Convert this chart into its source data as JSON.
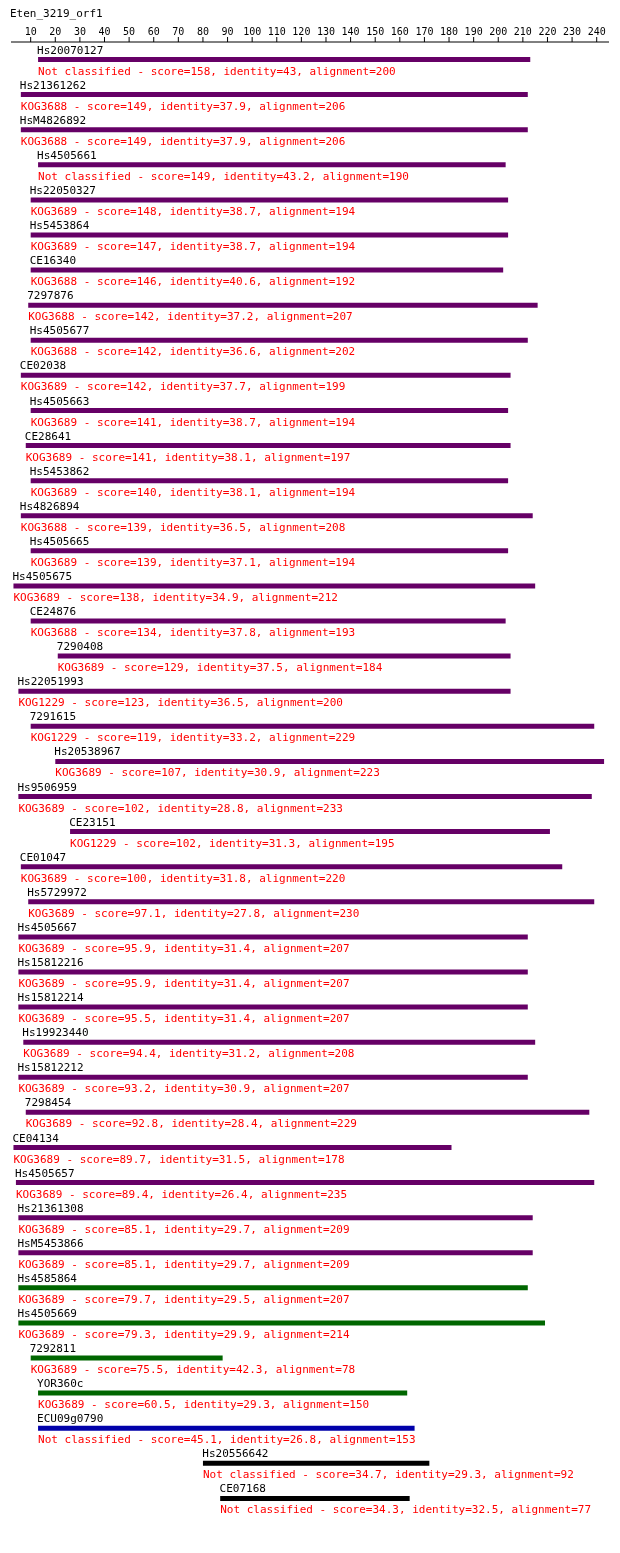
{
  "chart_data": {
    "type": "bar",
    "orientation": "horizontal",
    "title": "Eten_3219_orf1",
    "categories": [
      "Hs20070127",
      "Hs21361262",
      "HsM4826892",
      "Hs4505661",
      "Hs22050327",
      "Hs5453864",
      "CE16340",
      "7297876",
      "Hs4505677",
      "CE02038",
      "Hs4505663",
      "CE28641",
      "Hs5453862",
      "Hs4826894",
      "Hs4505665",
      "Hs4505675",
      "CE24876",
      "7290408",
      "Hs22051993",
      "7291615",
      "Hs20538967",
      "Hs9506959",
      "CE23151",
      "CE01047",
      "Hs5729972",
      "Hs4505667",
      "Hs15812216",
      "Hs15812214",
      "Hs19923440",
      "Hs15812212",
      "7298454",
      "CE04134",
      "Hs4505657",
      "Hs21361308",
      "HsM5453866",
      "Hs4585864",
      "Hs4505669",
      "7292811",
      "YOR360c",
      "ECU09g0790",
      "Hs20556642",
      "CE07168"
    ],
    "base": [
      13,
      6,
      6,
      13,
      10,
      10,
      10,
      9,
      10,
      6,
      10,
      8,
      10,
      6,
      10,
      3,
      10,
      21,
      5,
      10,
      20,
      5,
      26,
      6,
      9,
      5,
      5,
      5,
      7,
      5,
      8,
      3,
      4,
      5,
      5,
      5,
      5,
      10,
      13,
      13,
      80,
      87
    ],
    "values": [
      200,
      206,
      206,
      190,
      194,
      194,
      192,
      207,
      202,
      199,
      194,
      197,
      194,
      208,
      194,
      212,
      193,
      184,
      200,
      229,
      223,
      233,
      195,
      220,
      230,
      207,
      207,
      207,
      208,
      207,
      229,
      178,
      235,
      209,
      209,
      207,
      214,
      78,
      150,
      153,
      92,
      77
    ],
    "colors": [
      "#660066",
      "#660066",
      "#660066",
      "#660066",
      "#660066",
      "#660066",
      "#660066",
      "#660066",
      "#660066",
      "#660066",
      "#660066",
      "#660066",
      "#660066",
      "#660066",
      "#660066",
      "#660066",
      "#660066",
      "#660066",
      "#660066",
      "#660066",
      "#660066",
      "#660066",
      "#660066",
      "#660066",
      "#660066",
      "#660066",
      "#660066",
      "#660066",
      "#660066",
      "#660066",
      "#660066",
      "#660066",
      "#660066",
      "#660066",
      "#660066",
      "#006600",
      "#006600",
      "#006600",
      "#006600",
      "#0000aa",
      "#000000",
      "#000000"
    ],
    "xlim": [
      2,
      245
    ],
    "xticks": [
      10,
      20,
      30,
      40,
      50,
      60,
      70,
      80,
      90,
      100,
      110,
      120,
      130,
      140,
      150,
      160,
      170,
      180,
      190,
      200,
      210,
      220,
      230,
      240
    ],
    "grid": false,
    "legend": false,
    "annotations": [
      {
        "text": "Not classified - score=158, identity=43, alignment=200",
        "x": 13,
        "y": "Hs20070127"
      },
      {
        "text": "KOG3688 - score=149, identity=37.9, alignment=206",
        "x": 6,
        "y": "Hs21361262"
      },
      {
        "text": "KOG3688 - score=149, identity=37.9, alignment=206",
        "x": 6,
        "y": "HsM4826892"
      },
      {
        "text": "Not classified - score=149, identity=43.2, alignment=190",
        "x": 13,
        "y": "Hs4505661"
      },
      {
        "text": "KOG3689 - score=148, identity=38.7, alignment=194",
        "x": 10,
        "y": "Hs22050327"
      },
      {
        "text": "KOG3689 - score=147, identity=38.7, alignment=194",
        "x": 10,
        "y": "Hs5453864"
      },
      {
        "text": "KOG3688 - score=146, identity=40.6, alignment=192",
        "x": 10,
        "y": "CE16340"
      },
      {
        "text": "KOG3688 - score=142, identity=37.2, alignment=207",
        "x": 9,
        "y": "7297876"
      },
      {
        "text": "KOG3688 - score=142, identity=36.6, alignment=202",
        "x": 10,
        "y": "Hs4505677"
      },
      {
        "text": "KOG3689 - score=142, identity=37.7, alignment=199",
        "x": 6,
        "y": "CE02038"
      },
      {
        "text": "KOG3689 - score=141, identity=38.7, alignment=194",
        "x": 10,
        "y": "Hs4505663"
      },
      {
        "text": "KOG3689 - score=141, identity=38.1, alignment=197",
        "x": 8,
        "y": "CE28641"
      },
      {
        "text": "KOG3689 - score=140, identity=38.1, alignment=194",
        "x": 10,
        "y": "Hs5453862"
      },
      {
        "text": "KOG3688 - score=139, identity=36.5, alignment=208",
        "x": 6,
        "y": "Hs4826894"
      },
      {
        "text": "KOG3689 - score=139, identity=37.1, alignment=194",
        "x": 10,
        "y": "Hs4505665"
      },
      {
        "text": "KOG3689 - score=138, identity=34.9, alignment=212",
        "x": 3,
        "y": "Hs4505675"
      },
      {
        "text": "KOG3688 - score=134, identity=37.8, alignment=193",
        "x": 10,
        "y": "CE24876"
      },
      {
        "text": "KOG3689 - score=129, identity=37.5, alignment=184",
        "x": 21,
        "y": "7290408"
      },
      {
        "text": "KOG1229 - score=123, identity=36.5, alignment=200",
        "x": 5,
        "y": "Hs22051993"
      },
      {
        "text": "KOG1229 - score=119, identity=33.2, alignment=229",
        "x": 10,
        "y": "7291615"
      },
      {
        "text": "KOG3689 - score=107, identity=30.9, alignment=223",
        "x": 20,
        "y": "Hs20538967"
      },
      {
        "text": "KOG3689 - score=102, identity=28.8, alignment=233",
        "x": 5,
        "y": "Hs9506959"
      },
      {
        "text": "KOG1229 - score=102, identity=31.3, alignment=195",
        "x": 26,
        "y": "CE23151"
      },
      {
        "text": "KOG3689 - score=100, identity=31.8, alignment=220",
        "x": 6,
        "y": "CE01047"
      },
      {
        "text": "KOG3689 - score=97.1, identity=27.8, alignment=230",
        "x": 9,
        "y": "Hs5729972"
      },
      {
        "text": "KOG3689 - score=95.9, identity=31.4, alignment=207",
        "x": 5,
        "y": "Hs4505667"
      },
      {
        "text": "KOG3689 - score=95.9, identity=31.4, alignment=207",
        "x": 5,
        "y": "Hs15812216"
      },
      {
        "text": "KOG3689 - score=95.5, identity=31.4, alignment=207",
        "x": 5,
        "y": "Hs15812214"
      },
      {
        "text": "KOG3689 - score=94.4, identity=31.2, alignment=208",
        "x": 7,
        "y": "Hs19923440"
      },
      {
        "text": "KOG3689 - score=93.2, identity=30.9, alignment=207",
        "x": 5,
        "y": "Hs15812212"
      },
      {
        "text": "KOG3689 - score=92.8, identity=28.4, alignment=229",
        "x": 8,
        "y": "7298454"
      },
      {
        "text": "KOG3689 - score=89.7, identity=31.5, alignment=178",
        "x": 3,
        "y": "CE04134"
      },
      {
        "text": "KOG3689 - score=89.4, identity=26.4, alignment=235",
        "x": 4,
        "y": "Hs4505657"
      },
      {
        "text": "KOG3689 - score=85.1, identity=29.7, alignment=209",
        "x": 5,
        "y": "Hs21361308"
      },
      {
        "text": "KOG3689 - score=85.1, identity=29.7, alignment=209",
        "x": 5,
        "y": "HsM5453866"
      },
      {
        "text": "KOG3689 - score=79.7, identity=29.5, alignment=207",
        "x": 5,
        "y": "Hs4585864"
      },
      {
        "text": "KOG3689 - score=79.3, identity=29.9, alignment=214",
        "x": 5,
        "y": "Hs4505669"
      },
      {
        "text": "KOG3689 - score=75.5, identity=42.3, alignment=78",
        "x": 10,
        "y": "7292811"
      },
      {
        "text": "KOG3689 - score=60.5, identity=29.3, alignment=150",
        "x": 13,
        "y": "YOR360c"
      },
      {
        "text": "Not classified - score=45.1, identity=26.8, alignment=153",
        "x": 13,
        "y": "ECU09g0790"
      },
      {
        "text": "Not classified - score=34.7, identity=29.3, alignment=92",
        "x": 80,
        "y": "Hs20556642"
      },
      {
        "text": "Not classified - score=34.3, identity=32.5, alignment=77",
        "x": 87,
        "y": "CE07168"
      }
    ]
  }
}
